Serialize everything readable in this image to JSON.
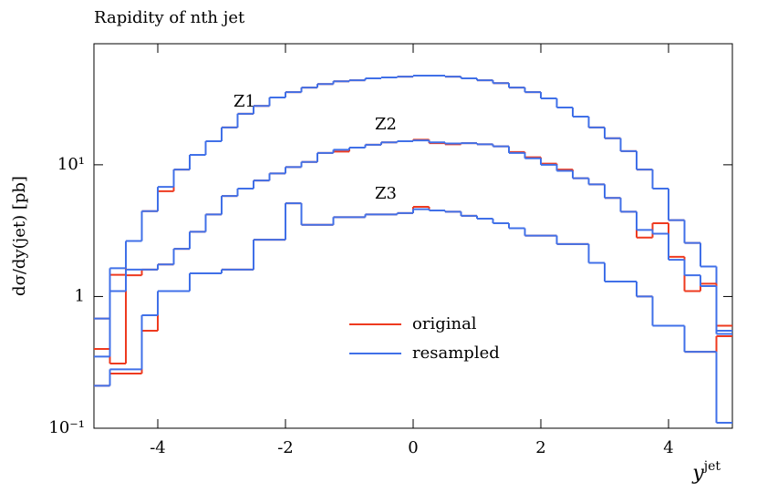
{
  "chart_data": {
    "type": "histogram",
    "title": "Rapidity of nth jet",
    "y_label": "dσ/dy(jet) [pb]",
    "x_label": {
      "main": "y",
      "sup": "jet"
    },
    "log_y": true,
    "xlim": [
      -5,
      5
    ],
    "ylim": [
      0.1,
      83
    ],
    "xticks": [
      -4,
      -2,
      0,
      2,
      4
    ],
    "yticks": [
      {
        "value": 0.1,
        "label": "10⁻¹"
      },
      1,
      {
        "value": 10,
        "label": "10¹"
      }
    ],
    "bins": [
      -5,
      -4.75,
      -4.5,
      -4.25,
      -4,
      -3.75,
      -3.5,
      -3.25,
      -3,
      -2.75,
      -2.5,
      -2.25,
      -2,
      -1.75,
      -1.5,
      -1.25,
      -1,
      -0.75,
      -0.5,
      -0.25,
      0,
      0.25,
      0.5,
      0.75,
      1,
      1.25,
      1.5,
      1.75,
      2,
      2.25,
      2.5,
      2.75,
      3,
      3.25,
      3.5,
      3.75,
      4,
      4.25,
      4.5,
      4.75,
      5
    ],
    "groups": [
      {
        "label": "Z1",
        "series": [
          {
            "name": "original",
            "color": "#ee3a1f",
            "values": [
              0.68,
              1.46,
              2.64,
              4.45,
              6.3,
              9.2,
              11.9,
              15.1,
              19.2,
              24.4,
              28,
              32.4,
              35.6,
              38.6,
              41,
              43,
              43.8,
              45.3,
              46,
              46.7,
              47.5,
              47.5,
              46.7,
              45.3,
              43.8,
              41.7,
              38.6,
              35.6,
              31.9,
              27.2,
              23.2,
              19.2,
              15.9,
              12.7,
              9.2,
              6.6,
              3.8,
              2.55,
              1.69,
              0.6
            ]
          },
          {
            "name": "resampled",
            "color": "#4070e8",
            "values": [
              0.68,
              1.64,
              2.64,
              4.45,
              6.8,
              9.2,
              11.9,
              15.1,
              19.2,
              24.4,
              28,
              32.4,
              35.6,
              38.6,
              41,
              43,
              43.8,
              45.3,
              46,
              46.7,
              47.5,
              47.5,
              46.7,
              45.3,
              43.8,
              41.7,
              38.6,
              35.6,
              31.9,
              27.2,
              23.2,
              19.2,
              15.9,
              12.7,
              9.2,
              6.6,
              3.8,
              2.55,
              1.69,
              0.52
            ]
          }
        ]
      },
      {
        "label": "Z2",
        "series": [
          {
            "name": "original",
            "color": "#ee3a1f",
            "values": [
              0.4,
              0.31,
              1.45,
              1.6,
              1.75,
              2.3,
              3.1,
              4.2,
              5.8,
              6.6,
              7.6,
              8.6,
              9.6,
              10.5,
              12.3,
              12.6,
              13.5,
              14.2,
              14.8,
              15.1,
              15.5,
              14.6,
              14.3,
              14.6,
              14.3,
              13.8,
              12.5,
              11.4,
              10.2,
              9.2,
              7.9,
              7.1,
              5.6,
              4.4,
              2.8,
              3.6,
              2.0,
              1.1,
              1.25,
              0.6
            ]
          },
          {
            "name": "resampled",
            "color": "#4070e8",
            "values": [
              0.35,
              1.1,
              1.6,
              1.6,
              1.75,
              2.3,
              3.1,
              4.2,
              5.8,
              6.6,
              7.6,
              8.6,
              9.6,
              10.5,
              12.3,
              13,
              13.5,
              14.2,
              14.8,
              15.1,
              15.3,
              14.8,
              14.5,
              14.6,
              14.3,
              13.8,
              12.3,
              11.2,
              10,
              9,
              7.9,
              7.1,
              5.6,
              4.4,
              3.2,
              3.0,
              1.9,
              1.45,
              1.2,
              0.55
            ]
          }
        ]
      },
      {
        "label": "Z3",
        "series": [
          {
            "name": "original",
            "color": "#ee3a1f",
            "values": [
              0.21,
              0.26,
              0.26,
              0.55,
              1.1,
              1.1,
              1.5,
              1.5,
              1.6,
              1.6,
              2.7,
              2.7,
              5.1,
              3.5,
              3.5,
              4.0,
              4.0,
              4.2,
              4.2,
              4.3,
              4.8,
              4.5,
              4.4,
              4.1,
              3.9,
              3.6,
              3.3,
              2.9,
              2.9,
              2.5,
              2.5,
              1.8,
              1.3,
              1.3,
              1.0,
              0.6,
              0.6,
              0.38,
              0.38,
              0.5
            ]
          },
          {
            "name": "resampled",
            "color": "#4070e8",
            "values": [
              0.21,
              0.28,
              0.28,
              0.72,
              1.1,
              1.1,
              1.5,
              1.5,
              1.6,
              1.6,
              2.7,
              2.7,
              5.1,
              3.5,
              3.5,
              4.0,
              4.0,
              4.2,
              4.2,
              4.3,
              4.6,
              4.5,
              4.4,
              4.1,
              3.9,
              3.6,
              3.3,
              2.9,
              2.9,
              2.5,
              2.5,
              1.8,
              1.3,
              1.3,
              1.0,
              0.6,
              0.6,
              0.38,
              0.38,
              0.11
            ]
          }
        ]
      }
    ]
  }
}
